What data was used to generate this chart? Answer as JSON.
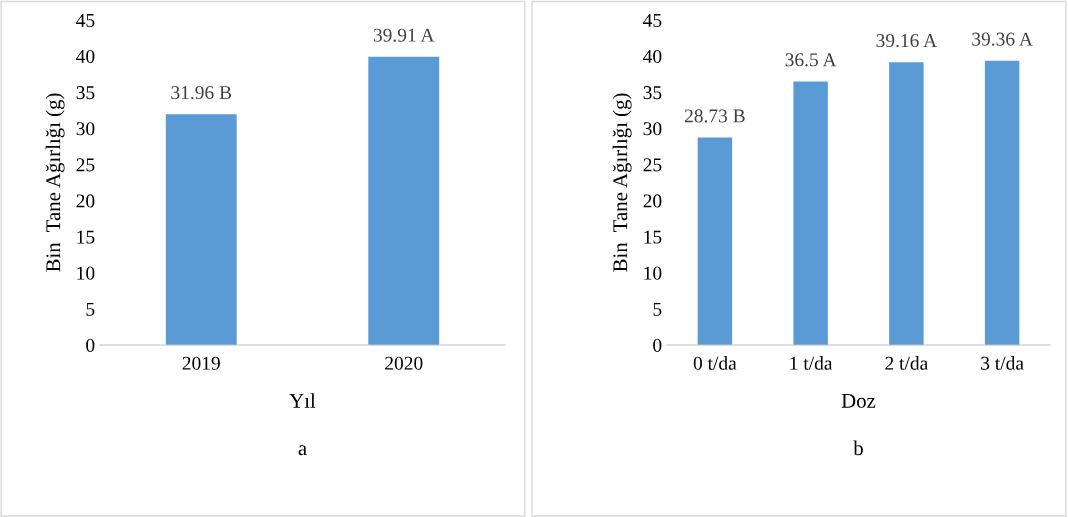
{
  "chart_data": [
    {
      "type": "bar",
      "categories": [
        "2019",
        "2020"
      ],
      "values": [
        31.96,
        39.91
      ],
      "value_labels": [
        "31.96 B",
        "39.91 A"
      ],
      "color": "#5b9bd5",
      "xlabel": "Yıl",
      "ylabel": "Bin  Tane Ağırlığı (g)",
      "ylim": [
        0,
        45
      ],
      "yticks": [
        0,
        5,
        10,
        15,
        20,
        25,
        30,
        35,
        40,
        45
      ],
      "grid": false,
      "annotations": [
        "a"
      ]
    },
    {
      "type": "bar",
      "categories": [
        "0 t/da",
        "1 t/da",
        "2 t/da",
        "3 t/da"
      ],
      "values": [
        28.73,
        36.5,
        39.16,
        39.36
      ],
      "value_labels": [
        "28.73 B",
        "36.5 A",
        "39.16 A",
        "39.36 A"
      ],
      "color": "#5b9bd5",
      "xlabel": "Doz",
      "ylabel": "Bin  Tane Ağırlığı (g)",
      "ylim": [
        0,
        45
      ],
      "yticks": [
        0,
        5,
        10,
        15,
        20,
        25,
        30,
        35,
        40,
        45
      ],
      "grid": false,
      "annotations": [
        "b"
      ]
    }
  ]
}
